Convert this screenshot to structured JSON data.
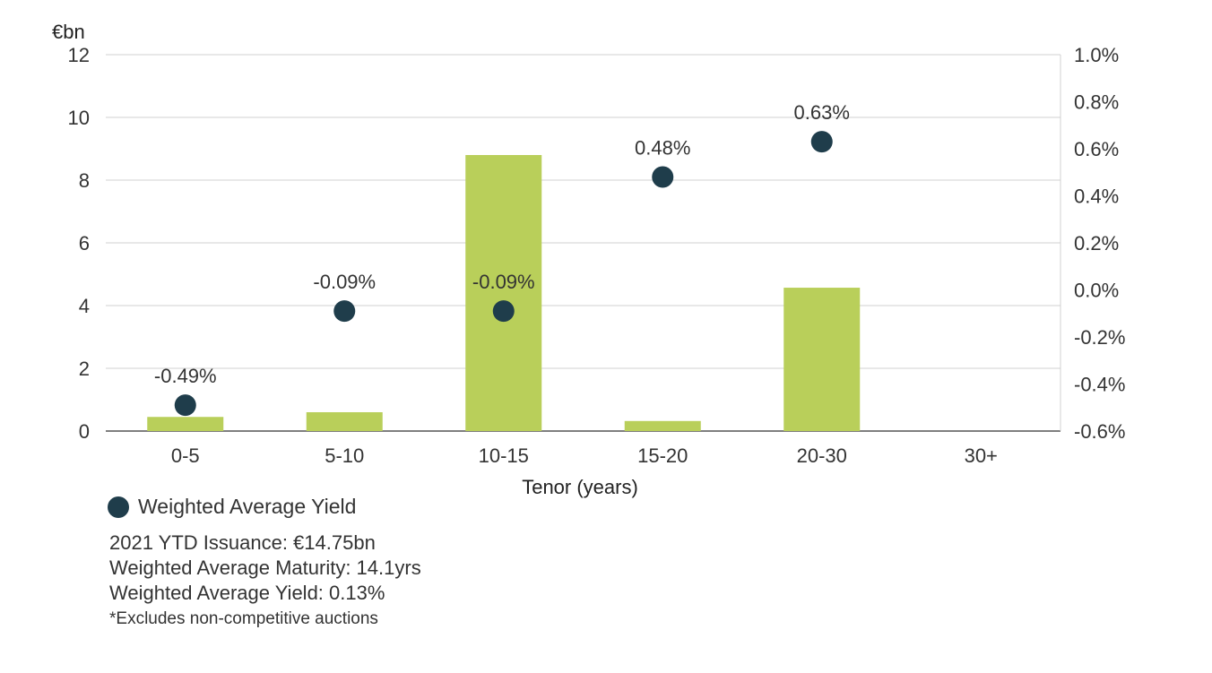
{
  "chart_data": {
    "type": "bar",
    "categories": [
      "0-5",
      "5-10",
      "10-15",
      "15-20",
      "20-30",
      "30+"
    ],
    "xlabel": "Tenor (years)",
    "y_unit_label": "€bn",
    "ylim": [
      0,
      12
    ],
    "y_ticks": [
      "0",
      "2",
      "4",
      "6",
      "8",
      "10",
      "12"
    ],
    "y2lim": [
      -0.6,
      1.0
    ],
    "y2_ticks": [
      "-0.6%",
      "-0.4%",
      "-0.2%",
      "0.0%",
      "0.2%",
      "0.4%",
      "0.6%",
      "0.8%",
      "1.0%"
    ],
    "grid": true,
    "series": [
      {
        "type": "bar",
        "axis": "left",
        "color": "#b9cf5a",
        "values": [
          0.45,
          0.6,
          8.8,
          0.32,
          4.57,
          null
        ]
      },
      {
        "name": "Weighted Average Yield",
        "type": "scatter",
        "axis": "right",
        "color": "#1f3d4b",
        "values": [
          -0.49,
          -0.09,
          -0.09,
          0.48,
          0.63,
          null
        ],
        "labels": [
          "-0.49%",
          "-0.09%",
          "-0.09%",
          "0.48%",
          "0.63%",
          null
        ]
      }
    ],
    "legend_position": "bottom-left"
  },
  "notes": {
    "issuance": "2021 YTD Issuance: €14.75bn",
    "maturity": "Weighted Average Maturity: 14.1yrs",
    "yield": "Weighted Average Yield: 0.13%",
    "footnote": "*Excludes non-competitive auctions"
  }
}
